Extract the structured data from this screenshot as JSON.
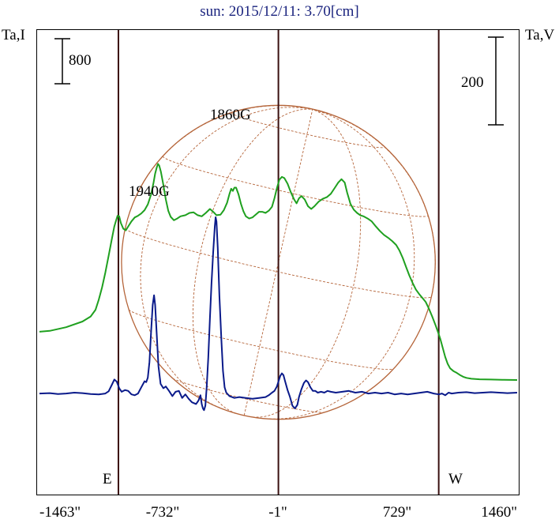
{
  "chart_data": {
    "type": "line",
    "title": "sun: 2015/12/11: 3.70[cm]",
    "left_axis_label": "Ta,I",
    "right_axis_label": "Ta,V",
    "x_unit": "arcsec",
    "xlim": [
      -1463,
      1460
    ],
    "x_ticks": [
      {
        "value": -1463,
        "label": "-1463\""
      },
      {
        "value": -732,
        "label": "-732\""
      },
      {
        "value": -1,
        "label": "-1\""
      },
      {
        "value": 729,
        "label": "729\""
      },
      {
        "value": 1460,
        "label": "1460\""
      }
    ],
    "left_scale_bar": {
      "label": "800",
      "value": 800
    },
    "right_scale_bar": {
      "label": "200",
      "value": 200
    },
    "limb_markers": [
      {
        "label": "E",
        "x": -980
      },
      {
        "label": "W",
        "x": 980
      }
    ],
    "center_line_x": -1,
    "solar_disk": {
      "center_x": -1,
      "radius_arcsec": 960,
      "grid": "heliographic",
      "color": "#b5653a"
    },
    "annotations": [
      {
        "label": "1860G",
        "x": -270
      },
      {
        "label": "1940G",
        "x": -770
      }
    ],
    "series": [
      {
        "key": "intensity",
        "axis": "left",
        "color": "#1fa01f",
        "points": [
          [
            -1463,
            30
          ],
          [
            -1400,
            45
          ],
          [
            -1300,
            110
          ],
          [
            -1200,
            210
          ],
          [
            -1150,
            300
          ],
          [
            -1120,
            420
          ],
          [
            -1100,
            600
          ],
          [
            -1080,
            820
          ],
          [
            -1060,
            1080
          ],
          [
            -1040,
            1380
          ],
          [
            -1020,
            1680
          ],
          [
            -1005,
            1900
          ],
          [
            -995,
            2000
          ],
          [
            -985,
            2090
          ],
          [
            -975,
            2080
          ],
          [
            -965,
            1960
          ],
          [
            -950,
            1860
          ],
          [
            -935,
            1830
          ],
          [
            -920,
            1900
          ],
          [
            -900,
            1990
          ],
          [
            -880,
            2060
          ],
          [
            -860,
            2090
          ],
          [
            -840,
            2130
          ],
          [
            -820,
            2190
          ],
          [
            -800,
            2290
          ],
          [
            -780,
            2470
          ],
          [
            -765,
            2680
          ],
          [
            -755,
            2840
          ],
          [
            -745,
            2950
          ],
          [
            -738,
            3010
          ],
          [
            -730,
            2980
          ],
          [
            -720,
            2870
          ],
          [
            -705,
            2640
          ],
          [
            -690,
            2380
          ],
          [
            -675,
            2180
          ],
          [
            -660,
            2070
          ],
          [
            -640,
            2010
          ],
          [
            -620,
            2040
          ],
          [
            -600,
            2080
          ],
          [
            -570,
            2100
          ],
          [
            -545,
            2140
          ],
          [
            -520,
            2150
          ],
          [
            -495,
            2100
          ],
          [
            -470,
            2080
          ],
          [
            -445,
            2140
          ],
          [
            -420,
            2210
          ],
          [
            -400,
            2160
          ],
          [
            -380,
            2100
          ],
          [
            -355,
            2110
          ],
          [
            -335,
            2190
          ],
          [
            -315,
            2320
          ],
          [
            -300,
            2480
          ],
          [
            -290,
            2570
          ],
          [
            -280,
            2530
          ],
          [
            -270,
            2590
          ],
          [
            -260,
            2590
          ],
          [
            -245,
            2470
          ],
          [
            -230,
            2300
          ],
          [
            -215,
            2170
          ],
          [
            -200,
            2080
          ],
          [
            -180,
            2040
          ],
          [
            -160,
            2060
          ],
          [
            -140,
            2110
          ],
          [
            -120,
            2160
          ],
          [
            -100,
            2160
          ],
          [
            -80,
            2140
          ],
          [
            -60,
            2180
          ],
          [
            -40,
            2250
          ],
          [
            -25,
            2400
          ],
          [
            -10,
            2580
          ],
          [
            5,
            2730
          ],
          [
            20,
            2780
          ],
          [
            35,
            2760
          ],
          [
            55,
            2660
          ],
          [
            75,
            2510
          ],
          [
            95,
            2380
          ],
          [
            110,
            2310
          ],
          [
            125,
            2400
          ],
          [
            140,
            2440
          ],
          [
            160,
            2380
          ],
          [
            180,
            2260
          ],
          [
            200,
            2210
          ],
          [
            220,
            2260
          ],
          [
            245,
            2340
          ],
          [
            270,
            2390
          ],
          [
            295,
            2420
          ],
          [
            320,
            2480
          ],
          [
            345,
            2590
          ],
          [
            365,
            2680
          ],
          [
            385,
            2740
          ],
          [
            405,
            2680
          ],
          [
            420,
            2500
          ],
          [
            440,
            2300
          ],
          [
            460,
            2200
          ],
          [
            480,
            2140
          ],
          [
            500,
            2100
          ],
          [
            520,
            2080
          ],
          [
            545,
            2040
          ],
          [
            570,
            1990
          ],
          [
            595,
            1900
          ],
          [
            620,
            1820
          ],
          [
            645,
            1750
          ],
          [
            670,
            1700
          ],
          [
            695,
            1640
          ],
          [
            720,
            1570
          ],
          [
            740,
            1470
          ],
          [
            760,
            1340
          ],
          [
            780,
            1180
          ],
          [
            800,
            1030
          ],
          [
            820,
            900
          ],
          [
            840,
            780
          ],
          [
            860,
            700
          ],
          [
            880,
            630
          ],
          [
            900,
            560
          ],
          [
            920,
            440
          ],
          [
            940,
            300
          ],
          [
            960,
            150
          ],
          [
            975,
            30
          ],
          [
            990,
            -100
          ],
          [
            1005,
            -260
          ],
          [
            1020,
            -420
          ],
          [
            1035,
            -540
          ],
          [
            1050,
            -620
          ],
          [
            1070,
            -670
          ],
          [
            1090,
            -700
          ],
          [
            1110,
            -740
          ],
          [
            1130,
            -770
          ],
          [
            1150,
            -790
          ],
          [
            1180,
            -805
          ],
          [
            1230,
            -815
          ],
          [
            1300,
            -820
          ],
          [
            1380,
            -825
          ],
          [
            1460,
            -828
          ]
        ]
      },
      {
        "key": "polarization",
        "axis": "right",
        "color": "#0a1a8a",
        "points": [
          [
            -1463,
            -2
          ],
          [
            -1400,
            -1
          ],
          [
            -1350,
            -3
          ],
          [
            -1300,
            -2
          ],
          [
            -1250,
            0
          ],
          [
            -1200,
            -1
          ],
          [
            -1150,
            -3
          ],
          [
            -1100,
            -4
          ],
          [
            -1060,
            -2
          ],
          [
            -1040,
            3
          ],
          [
            -1020,
            18
          ],
          [
            -1005,
            30
          ],
          [
            -990,
            25
          ],
          [
            -975,
            10
          ],
          [
            -960,
            2
          ],
          [
            -940,
            6
          ],
          [
            -920,
            4
          ],
          [
            -900,
            -4
          ],
          [
            -880,
            -6
          ],
          [
            -860,
            -2
          ],
          [
            -840,
            12
          ],
          [
            -820,
            26
          ],
          [
            -810,
            24
          ],
          [
            -800,
            34
          ],
          [
            -790,
            70
          ],
          [
            -780,
            140
          ],
          [
            -770,
            200
          ],
          [
            -762,
            222
          ],
          [
            -755,
            200
          ],
          [
            -745,
            130
          ],
          [
            -735,
            60
          ],
          [
            -722,
            20
          ],
          [
            -705,
            10
          ],
          [
            -690,
            14
          ],
          [
            -670,
            4
          ],
          [
            -650,
            -8
          ],
          [
            -630,
            2
          ],
          [
            -610,
            4
          ],
          [
            -590,
            -12
          ],
          [
            -570,
            -4
          ],
          [
            -550,
            -14
          ],
          [
            -530,
            -22
          ],
          [
            -505,
            -26
          ],
          [
            -490,
            -18
          ],
          [
            -478,
            -6
          ],
          [
            -470,
            -26
          ],
          [
            -463,
            -36
          ],
          [
            -456,
            -40
          ],
          [
            -448,
            -30
          ],
          [
            -440,
            10
          ],
          [
            -430,
            80
          ],
          [
            -420,
            170
          ],
          [
            -410,
            250
          ],
          [
            -400,
            320
          ],
          [
            -390,
            380
          ],
          [
            -385,
            400
          ],
          [
            -380,
            390
          ],
          [
            -372,
            330
          ],
          [
            -362,
            220
          ],
          [
            -350,
            120
          ],
          [
            -340,
            50
          ],
          [
            -330,
            12
          ],
          [
            -320,
            0
          ],
          [
            -300,
            -8
          ],
          [
            -270,
            -12
          ],
          [
            -240,
            -10
          ],
          [
            -200,
            -12
          ],
          [
            -160,
            -14
          ],
          [
            -120,
            -12
          ],
          [
            -80,
            -10
          ],
          [
            -60,
            -6
          ],
          [
            -40,
            0
          ],
          [
            -25,
            4
          ],
          [
            -10,
            14
          ],
          [
            0,
            26
          ],
          [
            10,
            38
          ],
          [
            20,
            44
          ],
          [
            30,
            40
          ],
          [
            40,
            26
          ],
          [
            55,
            6
          ],
          [
            70,
            -10
          ],
          [
            85,
            -30
          ],
          [
            100,
            -36
          ],
          [
            115,
            -28
          ],
          [
            125,
            -10
          ],
          [
            140,
            8
          ],
          [
            155,
            22
          ],
          [
            168,
            28
          ],
          [
            180,
            24
          ],
          [
            195,
            12
          ],
          [
            210,
            4
          ],
          [
            225,
            4
          ],
          [
            240,
            0
          ],
          [
            260,
            2
          ],
          [
            280,
            0
          ],
          [
            300,
            4
          ],
          [
            320,
            2
          ],
          [
            350,
            0
          ],
          [
            390,
            2
          ],
          [
            430,
            4
          ],
          [
            470,
            0
          ],
          [
            510,
            2
          ],
          [
            550,
            -2
          ],
          [
            590,
            0
          ],
          [
            630,
            -2
          ],
          [
            670,
            0
          ],
          [
            710,
            -4
          ],
          [
            750,
            -2
          ],
          [
            790,
            -4
          ],
          [
            830,
            -2
          ],
          [
            870,
            0
          ],
          [
            910,
            2
          ],
          [
            950,
            -2
          ],
          [
            980,
            -4
          ],
          [
            1000,
            -2
          ],
          [
            1020,
            -6
          ],
          [
            1040,
            0
          ],
          [
            1060,
            -2
          ],
          [
            1100,
            0
          ],
          [
            1150,
            1
          ],
          [
            1200,
            -1
          ],
          [
            1250,
            0
          ],
          [
            1300,
            1
          ],
          [
            1350,
            0
          ],
          [
            1400,
            -1
          ],
          [
            1460,
            0
          ]
        ]
      }
    ]
  }
}
